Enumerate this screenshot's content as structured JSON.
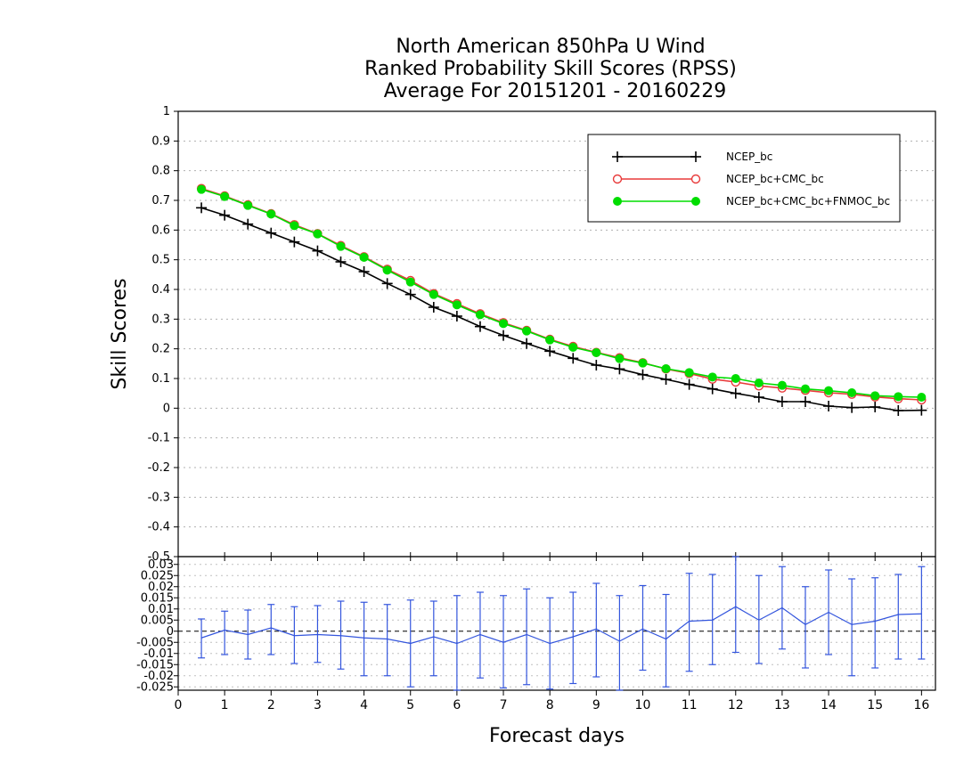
{
  "title_lines": [
    "North American 850hPa U Wind",
    "Ranked Probability Skill Scores (RPSS)",
    "Average For 20151201 - 20160229"
  ],
  "chart_data": [
    {
      "type": "line",
      "ylabel": "Skill Scores",
      "ylim": [
        -0.5,
        1
      ],
      "yticks": [
        1,
        0.9,
        0.8,
        0.7,
        0.6,
        0.5,
        0.4,
        0.3,
        0.2,
        0.1,
        0,
        -0.1,
        -0.2,
        -0.3,
        -0.4,
        -0.5
      ],
      "ytick_labels": [
        "1",
        "0.9",
        "0.8",
        "0.7",
        "0.6",
        "0.5",
        "0.4",
        "0.3",
        "0.2",
        "0.1",
        "0",
        "-0.1",
        "-0.2",
        "-0.3",
        "-0.4",
        "-0.5"
      ],
      "xlim": [
        0,
        16.3
      ],
      "grid": true,
      "legend_position": "top-right",
      "x": [
        0.5,
        1,
        1.5,
        2,
        2.5,
        3,
        3.5,
        4,
        4.5,
        5,
        5.5,
        6,
        6.5,
        7,
        7.5,
        8,
        8.5,
        9,
        9.5,
        10,
        10.5,
        11,
        11.5,
        12,
        12.5,
        13,
        13.5,
        14,
        14.5,
        15,
        15.5,
        16
      ],
      "series": [
        {
          "name": "NCEP_bc",
          "color": "#000000",
          "marker": "plus",
          "values": [
            0.675,
            0.65,
            0.62,
            0.59,
            0.56,
            0.53,
            0.493,
            0.46,
            0.42,
            0.383,
            0.34,
            0.31,
            0.275,
            0.245,
            0.218,
            0.192,
            0.168,
            0.145,
            0.132,
            0.113,
            0.097,
            0.08,
            0.065,
            0.05,
            0.037,
            0.022,
            0.022,
            0.007,
            0.002,
            0.004,
            -0.008,
            -0.007
          ]
        },
        {
          "name": "NCEP_bc+CMC_bc",
          "color": "#e83a3a",
          "marker": "open-circle",
          "values": [
            0.74,
            0.715,
            0.685,
            0.655,
            0.618,
            0.588,
            0.548,
            0.51,
            0.468,
            0.43,
            0.386,
            0.352,
            0.318,
            0.288,
            0.262,
            0.232,
            0.208,
            0.188,
            0.17,
            0.153,
            0.132,
            0.117,
            0.098,
            0.088,
            0.075,
            0.068,
            0.06,
            0.052,
            0.047,
            0.038,
            0.032,
            0.028
          ]
        },
        {
          "name": "NCEP_bc+CMC_bc+FNMOC_bc",
          "color": "#00dd00",
          "marker": "filled-circle",
          "values": [
            0.737,
            0.713,
            0.683,
            0.654,
            0.615,
            0.587,
            0.545,
            0.508,
            0.465,
            0.425,
            0.383,
            0.348,
            0.315,
            0.285,
            0.26,
            0.23,
            0.205,
            0.187,
            0.167,
            0.152,
            0.133,
            0.12,
            0.105,
            0.1,
            0.085,
            0.077,
            0.065,
            0.059,
            0.052,
            0.042,
            0.039,
            0.037
          ]
        }
      ]
    },
    {
      "type": "line",
      "xlabel": "Forecast days",
      "ylim": [
        -0.0265,
        0.0335
      ],
      "yticks": [
        0.03,
        0.025,
        0.02,
        0.015,
        0.01,
        0.005,
        0,
        -0.005,
        -0.01,
        -0.015,
        -0.02,
        -0.025
      ],
      "ytick_labels": [
        "0.03",
        "0.025",
        "0.02",
        "0.015",
        "0.01",
        "0.005",
        "0",
        "-0.005",
        "-0.01",
        "-0.015",
        "-0.02",
        "-0.025"
      ],
      "top_tick_label": "-0.5",
      "xticks": [
        0,
        1,
        2,
        3,
        4,
        5,
        6,
        7,
        8,
        9,
        10,
        11,
        12,
        13,
        14,
        15,
        16
      ],
      "xtick_labels": [
        "0",
        "1",
        "2",
        "3",
        "4",
        "5",
        "6",
        "7",
        "8",
        "9",
        "10",
        "11",
        "12",
        "13",
        "14",
        "15",
        "16"
      ],
      "xlim": [
        0,
        16.3
      ],
      "zero_line": "dashed",
      "x": [
        0.5,
        1,
        1.5,
        2,
        2.5,
        3,
        3.5,
        4,
        4.5,
        5,
        5.5,
        6,
        6.5,
        7,
        7.5,
        8,
        8.5,
        9,
        9.5,
        10,
        10.5,
        11,
        11.5,
        12,
        12.5,
        13,
        13.5,
        14,
        14.5,
        15,
        15.5,
        16
      ],
      "series": [
        {
          "color": "#3355dd",
          "values": [
            -0.003,
            0.0005,
            -0.0015,
            0.0015,
            -0.002,
            -0.0015,
            -0.002,
            -0.003,
            -0.0035,
            -0.0055,
            -0.0025,
            -0.0055,
            -0.0015,
            -0.005,
            -0.0015,
            -0.0055,
            -0.0025,
            0.001,
            -0.0045,
            0.001,
            -0.0035,
            0.0045,
            0.005,
            0.011,
            0.005,
            0.0105,
            0.003,
            0.0085,
            0.003,
            0.0045,
            0.0075,
            0.0078
          ],
          "error_high": [
            0.0055,
            0.009,
            0.0095,
            0.012,
            0.011,
            0.0115,
            0.0135,
            0.013,
            0.012,
            0.014,
            0.0135,
            0.016,
            0.0175,
            0.016,
            0.019,
            0.015,
            0.0175,
            0.0215,
            0.016,
            0.0205,
            0.0165,
            0.026,
            0.0255,
            0.0335,
            0.025,
            0.029,
            0.02,
            0.0275,
            0.0235,
            0.024,
            0.0255,
            0.029
          ],
          "error_low": [
            -0.012,
            -0.0105,
            -0.0125,
            -0.0105,
            -0.0145,
            -0.014,
            -0.017,
            -0.02,
            -0.02,
            -0.025,
            -0.02,
            -0.0265,
            -0.021,
            -0.0255,
            -0.024,
            -0.026,
            -0.0235,
            -0.0205,
            -0.0265,
            -0.0175,
            -0.025,
            -0.018,
            -0.015,
            -0.0095,
            -0.0145,
            -0.008,
            -0.0165,
            -0.0105,
            -0.02,
            -0.0165,
            -0.0125,
            -0.0125
          ]
        }
      ]
    }
  ]
}
